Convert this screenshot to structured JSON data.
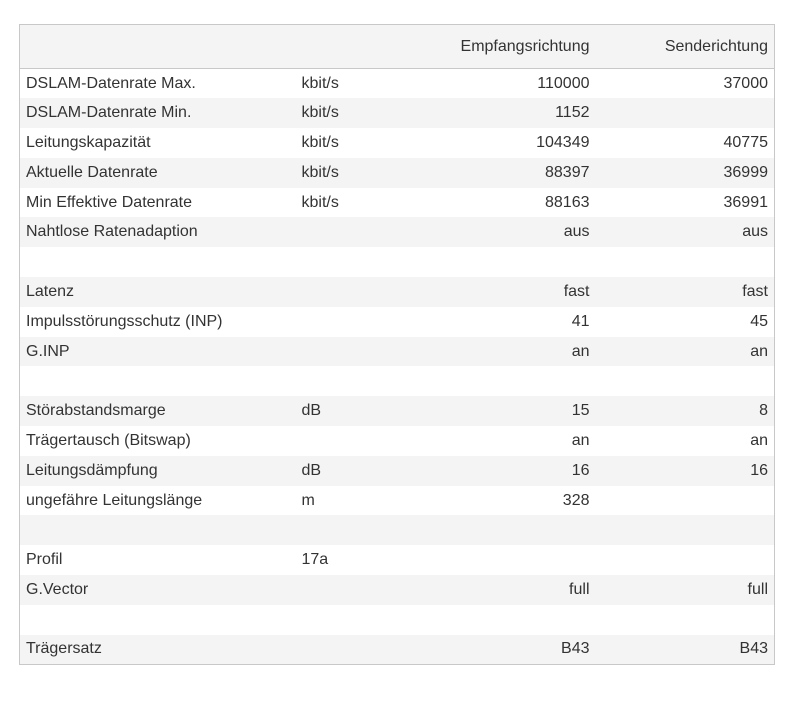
{
  "table": {
    "header": [
      null,
      null,
      "Empfangsrichtung",
      "Senderichtung"
    ],
    "rows": [
      [
        "DSLAM-Datenrate Max.",
        "kbit/s",
        110000,
        37000
      ],
      [
        "DSLAM-Datenrate Min.",
        "kbit/s",
        1152,
        null
      ],
      [
        "Leitungskapazität",
        "kbit/s",
        104349,
        40775
      ],
      [
        "Aktuelle Datenrate",
        "kbit/s",
        88397,
        36999
      ],
      [
        "Min Effektive Datenrate",
        "kbit/s",
        88163,
        36991
      ],
      [
        "Nahtlose Ratenadaption",
        null,
        "aus",
        "aus"
      ],
      [
        null,
        null,
        null,
        null
      ],
      [
        "Latenz",
        null,
        "fast",
        "fast"
      ],
      [
        "Impulsstörungsschutz (INP)",
        null,
        41,
        45
      ],
      [
        "G.INP",
        null,
        "an",
        "an"
      ],
      [
        null,
        null,
        null,
        null
      ],
      [
        "Störabstandsmarge",
        "dB",
        15,
        8
      ],
      [
        "Trägertausch (Bitswap)",
        null,
        "an",
        "an"
      ],
      [
        "Leitungsdämpfung",
        "dB",
        16,
        16
      ],
      [
        "ungefähre Leitungslänge",
        "m",
        328,
        null
      ],
      [
        null,
        null,
        null,
        null
      ],
      [
        "Profil",
        "17a",
        null,
        null
      ],
      [
        "G.Vector",
        null,
        "full",
        "full"
      ],
      [
        null,
        null,
        null,
        null
      ],
      [
        "Trägersatz",
        null,
        "B43",
        "B43"
      ]
    ]
  }
}
